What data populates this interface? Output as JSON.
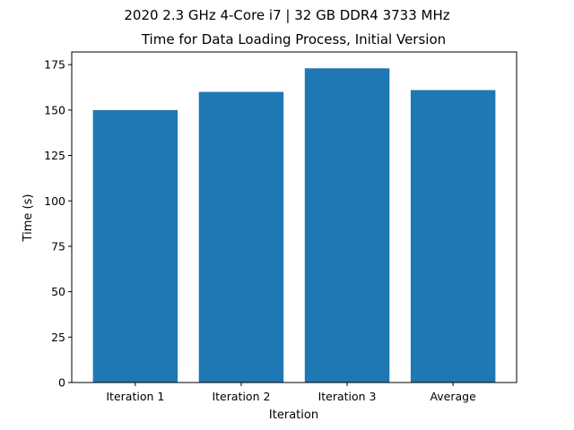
{
  "chart_data": {
    "type": "bar",
    "suptitle": "2020 2.3 GHz 4-Core i7 | 32 GB DDR4 3733 MHz",
    "title": "Time for Data Loading Process, Initial Version",
    "xlabel": "Iteration",
    "ylabel": "Time (s)",
    "categories": [
      "Iteration 1",
      "Iteration 2",
      "Iteration 3",
      "Average"
    ],
    "values": [
      150,
      160,
      173,
      161
    ],
    "ylim": [
      0,
      182
    ],
    "yticks": [
      0,
      25,
      50,
      75,
      100,
      125,
      150,
      175
    ],
    "bar_color": "#1f77b4",
    "grid": false,
    "legend": false
  }
}
